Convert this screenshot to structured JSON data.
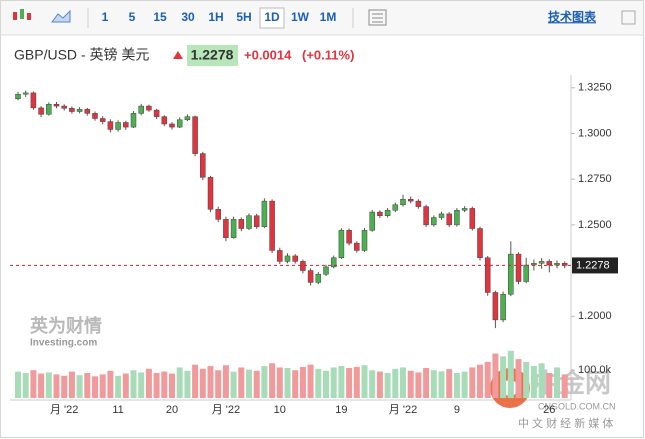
{
  "toolbar": {
    "intervals": [
      "1",
      "5",
      "15",
      "30",
      "1H",
      "5H",
      "1D",
      "1W",
      "1M"
    ],
    "selected": "1D",
    "link": "技术图表"
  },
  "header": {
    "instrument": "GBP/USD - 英镑 美元",
    "price": "1.2278",
    "change": "+0.0014",
    "change_pct": "(+0.11%)"
  },
  "watermarks": {
    "left_cn": "英为财情",
    "left_en": "Investing.com",
    "right_cn": "中金网",
    "right_en": "CNGOLD.COM.CN",
    "right_sub": "中 文 财 经 新 媒 体"
  },
  "chart_data": {
    "type": "candlestick",
    "up_color": "#4caf50",
    "down_color": "#e0343f",
    "volume_up_color": "#a8dcb9",
    "volume_down_color": "#f09a9c",
    "categories": [
      null,
      null,
      null,
      null,
      null,
      null,
      "月 '22",
      null,
      null,
      null,
      null,
      null,
      null,
      "11",
      null,
      null,
      null,
      null,
      null,
      null,
      "20",
      null,
      null,
      null,
      null,
      null,
      null,
      "月 '22",
      null,
      null,
      null,
      null,
      null,
      null,
      "10",
      null,
      null,
      null,
      null,
      null,
      null,
      null,
      "19",
      null,
      null,
      null,
      null,
      null,
      null,
      null,
      "月 '22",
      null,
      null,
      null,
      null,
      null,
      null,
      "9",
      null,
      null,
      null,
      null,
      null,
      null,
      null,
      null,
      null,
      null,
      null,
      "26",
      null,
      null
    ],
    "open": [
      1.319,
      1.3215,
      1.3222,
      1.314,
      1.3105,
      1.316,
      1.315,
      1.3138,
      1.312,
      1.3132,
      1.311,
      1.3082,
      1.3065,
      1.3022,
      1.306,
      1.3035,
      1.311,
      1.315,
      1.3128,
      1.3092,
      1.3052,
      1.3035,
      1.3075,
      1.3092,
      1.289,
      1.276,
      1.2585,
      1.253,
      1.243,
      1.253,
      1.248,
      1.255,
      1.249,
      1.263,
      1.236,
      1.23,
      1.233,
      1.23,
      1.225,
      1.2185,
      1.223,
      1.227,
      1.232,
      1.247,
      1.24,
      1.236,
      1.247,
      1.257,
      1.255,
      1.258,
      1.261,
      1.264,
      1.263,
      1.26,
      1.25,
      1.254,
      1.256,
      1.25,
      1.258,
      1.259,
      1.248,
      1.232,
      1.213,
      1.198,
      1.212,
      1.234,
      1.219,
      1.228,
      1.229,
      1.23,
      1.228,
      1.229
    ],
    "high": [
      1.3228,
      1.3235,
      1.323,
      1.315,
      1.317,
      1.3172,
      1.316,
      1.3148,
      1.3145,
      1.314,
      1.312,
      1.3095,
      1.3078,
      1.3072,
      1.307,
      1.3122,
      1.3162,
      1.3158,
      1.3135,
      1.31,
      1.3062,
      1.3088,
      1.3105,
      1.3098,
      1.29,
      1.2768,
      1.26,
      1.2545,
      1.2545,
      1.254,
      1.2562,
      1.256,
      1.2645,
      1.264,
      1.2375,
      1.2345,
      1.234,
      1.231,
      1.2262,
      1.2242,
      1.2282,
      1.2332,
      1.2482,
      1.248,
      1.241,
      1.2482,
      1.2582,
      1.258,
      1.2592,
      1.2622,
      1.2665,
      1.2655,
      1.264,
      1.261,
      1.2552,
      1.2572,
      1.257,
      1.2592,
      1.2602,
      1.26,
      1.249,
      1.233,
      1.214,
      1.2135,
      1.241,
      1.235,
      1.232,
      1.231,
      1.2318,
      1.2312,
      1.2305,
      1.23
    ],
    "low": [
      1.3182,
      1.32,
      1.313,
      1.309,
      1.3098,
      1.3138,
      1.3125,
      1.3108,
      1.311,
      1.3098,
      1.307,
      1.305,
      1.3005,
      1.301,
      1.302,
      1.303,
      1.31,
      1.3118,
      1.308,
      1.304,
      1.3022,
      1.303,
      1.3068,
      1.2875,
      1.2745,
      1.257,
      1.2515,
      1.241,
      1.2425,
      1.2465,
      1.2472,
      1.2478,
      1.2482,
      1.2345,
      1.2285,
      1.229,
      1.2288,
      1.2235,
      1.2168,
      1.2175,
      1.222,
      1.2262,
      1.2312,
      1.2388,
      1.2348,
      1.2352,
      1.2462,
      1.2538,
      1.254,
      1.257,
      1.26,
      1.2618,
      1.2588,
      1.2488,
      1.249,
      1.2528,
      1.2488,
      1.249,
      1.257,
      1.2468,
      1.2305,
      1.2112,
      1.1935,
      1.1968,
      1.211,
      1.2175,
      1.218,
      1.225,
      1.226,
      1.224,
      1.2262,
      1.2262
    ],
    "close": [
      1.3215,
      1.3222,
      1.314,
      1.3105,
      1.316,
      1.315,
      1.3138,
      1.312,
      1.3132,
      1.311,
      1.3082,
      1.3065,
      1.3022,
      1.306,
      1.3035,
      1.311,
      1.315,
      1.3128,
      1.3092,
      1.3052,
      1.3035,
      1.3075,
      1.3092,
      1.289,
      1.276,
      1.2585,
      1.253,
      1.243,
      1.253,
      1.248,
      1.255,
      1.249,
      1.263,
      1.236,
      1.23,
      1.233,
      1.23,
      1.225,
      1.2185,
      1.223,
      1.227,
      1.232,
      1.247,
      1.24,
      1.236,
      1.247,
      1.257,
      1.255,
      1.258,
      1.261,
      1.264,
      1.263,
      1.26,
      1.25,
      1.254,
      1.256,
      1.25,
      1.258,
      1.259,
      1.248,
      1.232,
      1.213,
      1.198,
      1.212,
      1.234,
      1.219,
      1.228,
      1.229,
      1.23,
      1.228,
      1.229,
      1.2278
    ],
    "volume": [
      95000,
      90000,
      100000,
      88000,
      92000,
      85000,
      80000,
      95000,
      82000,
      90000,
      78000,
      85000,
      98000,
      80000,
      88000,
      100000,
      92000,
      105000,
      90000,
      95000,
      88000,
      110000,
      98000,
      120000,
      105000,
      115000,
      100000,
      118000,
      95000,
      110000,
      102000,
      98000,
      115000,
      125000,
      110000,
      108000,
      100000,
      112000,
      120000,
      105000,
      98000,
      110000,
      115000,
      108000,
      112000,
      118000,
      100000,
      95000,
      90000,
      105000,
      110000,
      98000,
      92000,
      108000,
      100000,
      96000,
      104000,
      90000,
      95000,
      110000,
      120000,
      130000,
      160000,
      150000,
      170000,
      140000,
      130000,
      115000,
      125000,
      90000,
      110000,
      85000
    ],
    "ylim": [
      1.187,
      1.332
    ],
    "yticks": [
      {
        "value": 1.325,
        "label": "1.3250"
      },
      {
        "value": 1.3,
        "label": "1.3000"
      },
      {
        "value": 1.275,
        "label": "1.2750"
      },
      {
        "value": 1.25,
        "label": "1.2500"
      },
      {
        "value": 1.2,
        "label": "1.2000"
      }
    ],
    "volume_ylim": [
      0,
      180000
    ],
    "volume_yticks": [
      {
        "value": 100000,
        "label": "100.0k"
      }
    ],
    "current_price": {
      "value": 1.2278,
      "label": "1.2278"
    },
    "grid": false
  }
}
